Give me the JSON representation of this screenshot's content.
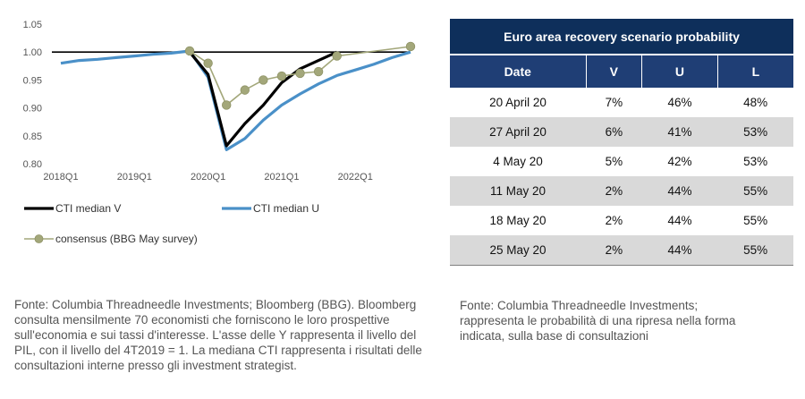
{
  "chart_data": {
    "type": "line",
    "x_ticks": [
      "2018Q1",
      "2019Q1",
      "2020Q1",
      "2021Q1",
      "2022Q1"
    ],
    "y_ticks": [
      "1.05",
      "1.00",
      "0.95",
      "0.90",
      "0.85",
      "0.80"
    ],
    "ylim": [
      0.8,
      1.05
    ],
    "reference_line": 1.0,
    "series": [
      {
        "name": "CTI median V",
        "color": "#000000",
        "x": [
          "2019Q4",
          "2020Q1",
          "2020Q2",
          "2020Q3",
          "2020Q4",
          "2021Q1",
          "2021Q2",
          "2021Q3",
          "2021Q4"
        ],
        "values": [
          1.0,
          0.96,
          0.832,
          0.872,
          0.905,
          0.945,
          0.97,
          0.985,
          1.0
        ]
      },
      {
        "name": "CTI median U",
        "color": "#4a90c8",
        "x": [
          "2018Q1",
          "2018Q2",
          "2018Q3",
          "2018Q4",
          "2019Q1",
          "2019Q2",
          "2019Q3",
          "2019Q4",
          "2020Q1",
          "2020Q2",
          "2020Q3",
          "2020Q4",
          "2021Q1",
          "2021Q2",
          "2021Q3",
          "2021Q4",
          "2022Q1",
          "2022Q2",
          "2022Q3",
          "2022Q4"
        ],
        "values": [
          0.98,
          0.985,
          0.987,
          0.99,
          0.993,
          0.996,
          0.998,
          1.002,
          0.955,
          0.825,
          0.845,
          0.878,
          0.905,
          0.925,
          0.943,
          0.958,
          0.968,
          0.978,
          0.99,
          1.0
        ]
      },
      {
        "name": "consensus (BBG May survey)",
        "color": "#a3a77a",
        "x": [
          "2019Q4",
          "2020Q1",
          "2020Q2",
          "2020Q3",
          "2020Q4",
          "2021Q1",
          "2021Q2",
          "2021Q3",
          "2021Q4",
          "2022Q4"
        ],
        "values": [
          1.002,
          0.98,
          0.905,
          0.932,
          0.95,
          0.957,
          0.962,
          0.965,
          0.993,
          1.01
        ]
      }
    ]
  },
  "table": {
    "title": "Euro area recovery scenario probability",
    "headers": [
      "Date",
      "V",
      "U",
      "L"
    ],
    "rows": [
      [
        "20 April 20",
        "7%",
        "46%",
        "48%"
      ],
      [
        "27 April 20",
        "6%",
        "41%",
        "53%"
      ],
      [
        "4 May 20",
        "5%",
        "42%",
        "53%"
      ],
      [
        "11 May 20",
        "2%",
        "44%",
        "55%"
      ],
      [
        "18 May 20",
        "2%",
        "44%",
        "55%"
      ],
      [
        "25 May 20",
        "2%",
        "44%",
        "55%"
      ]
    ]
  },
  "notes": {
    "left": "Fonte: Columbia Threadneedle Investments; Bloomberg (BBG). Bloomberg consulta mensilmente 70 economisti che forniscono le loro prospettive sull'economia e sui tassi d'interesse. L'asse delle Y rappresenta il livello del PIL, con il livello del 4T2019 = 1. La mediana CTI rappresenta i risultati delle consultazioni interne presso gli investment strategist.",
    "right": "Fonte: Columbia Threadneedle Investments; rappresenta le probabilità di una ripresa nella forma indicata, sulla base di consultazioni"
  }
}
